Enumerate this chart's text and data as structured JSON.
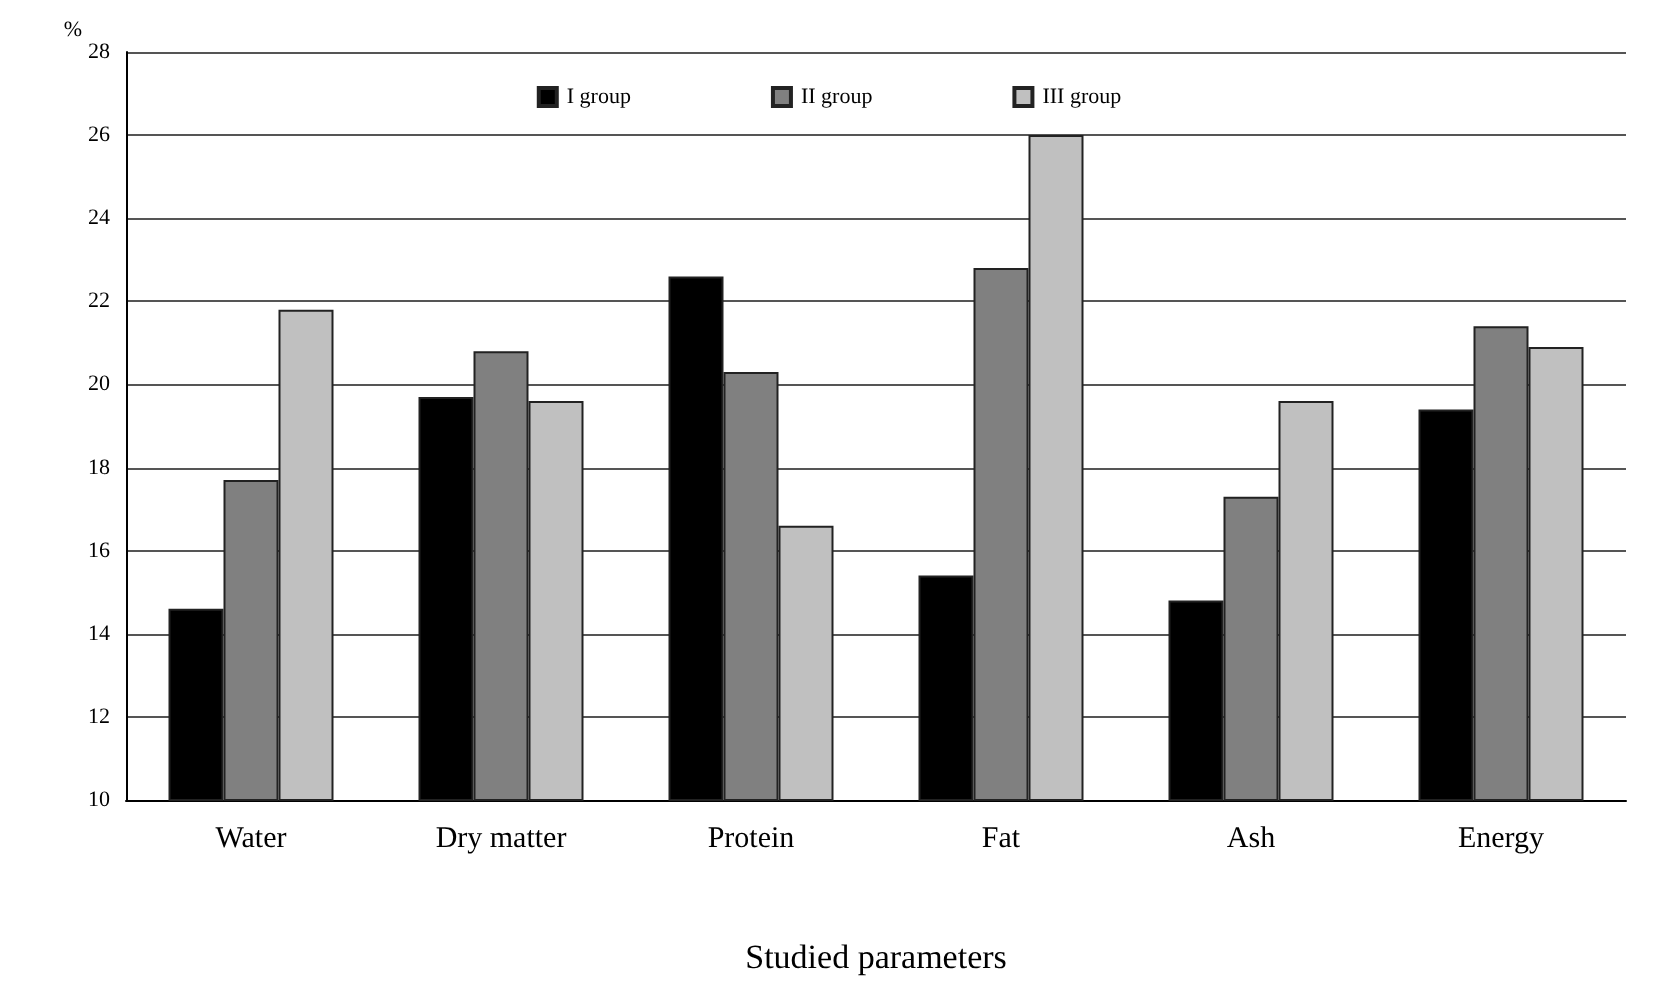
{
  "chart_data": {
    "type": "bar",
    "xlabel": "Studied parameters",
    "ylabel": "%",
    "categories": [
      "Water",
      "Dry matter",
      "Protein",
      "Fat",
      "Ash",
      "Energy"
    ],
    "series": [
      {
        "name": "I group",
        "color": "#000000",
        "values": [
          14.6,
          19.7,
          22.6,
          15.4,
          14.8,
          19.4
        ]
      },
      {
        "name": "II group",
        "color": "#808080",
        "values": [
          17.7,
          20.8,
          20.3,
          22.8,
          17.3,
          21.4
        ]
      },
      {
        "name": "III group",
        "color": "#c0c0c0",
        "values": [
          21.8,
          19.6,
          16.6,
          26.0,
          19.6,
          20.9
        ]
      }
    ],
    "ylim": [
      10,
      28
    ],
    "yticks": [
      10,
      12,
      14,
      16,
      18,
      20,
      22,
      24,
      26,
      28
    ],
    "grid": "y",
    "legend": "top"
  }
}
